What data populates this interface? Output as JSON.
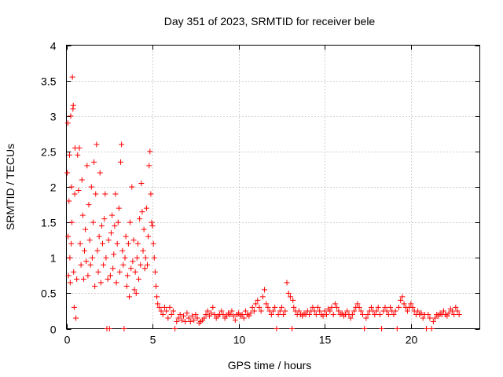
{
  "chart_data": {
    "type": "scatter",
    "title": "Day 351 of 2023, SRMTID for receiver bele",
    "xlabel": "GPS time / hours",
    "ylabel": "SRMTID / TECUs",
    "xlim": [
      0,
      24
    ],
    "ylim": [
      0,
      4
    ],
    "x_ticks": [
      0,
      5,
      10,
      15,
      20
    ],
    "x_tick_labels": [
      "0",
      "5",
      "10",
      "15",
      "20"
    ],
    "y_ticks": [
      0,
      0.5,
      1,
      1.5,
      2,
      2.5,
      3,
      3.5,
      4
    ],
    "y_tick_labels": [
      "0",
      "0.5",
      "1",
      "1.5",
      "2",
      "2.5",
      "3",
      "3.5",
      "4"
    ],
    "grid": true,
    "marker": "plus",
    "series": [
      {
        "name": "SRMTID",
        "color": "#ff0000",
        "points": [
          [
            0.05,
            2.2
          ],
          [
            0.08,
            2.9
          ],
          [
            0.1,
            1.3
          ],
          [
            0.12,
            0.75
          ],
          [
            0.15,
            1.8
          ],
          [
            0.18,
            2.45
          ],
          [
            0.2,
            1.0
          ],
          [
            0.22,
            0.65
          ],
          [
            0.25,
            3.0
          ],
          [
            0.28,
            1.2
          ],
          [
            0.3,
            2.0
          ],
          [
            0.32,
            1.5
          ],
          [
            0.35,
            3.55
          ],
          [
            0.38,
            3.1
          ],
          [
            0.4,
            3.15
          ],
          [
            0.42,
            0.8
          ],
          [
            0.45,
            0.3
          ],
          [
            0.48,
            1.9
          ],
          [
            0.5,
            2.55
          ],
          [
            0.55,
            0.15
          ],
          [
            0.6,
            0.7
          ],
          [
            0.65,
            2.45
          ],
          [
            0.7,
            1.95
          ],
          [
            0.75,
            2.55
          ],
          [
            0.8,
            1.2
          ],
          [
            0.85,
            0.9
          ],
          [
            0.9,
            2.1
          ],
          [
            0.95,
            1.6
          ],
          [
            1.0,
            0.7
          ],
          [
            1.05,
            1.1
          ],
          [
            1.1,
            1.4
          ],
          [
            1.15,
            0.95
          ],
          [
            1.2,
            2.3
          ],
          [
            1.25,
            0.75
          ],
          [
            1.3,
            1.75
          ],
          [
            1.35,
            1.25
          ],
          [
            1.4,
            0.9
          ],
          [
            1.45,
            2.0
          ],
          [
            1.5,
            1.0
          ],
          [
            1.55,
            1.5
          ],
          [
            1.6,
            2.35
          ],
          [
            1.65,
            0.6
          ],
          [
            1.7,
            1.9
          ],
          [
            1.75,
            2.6
          ],
          [
            1.8,
            1.1
          ],
          [
            1.85,
            0.8
          ],
          [
            1.9,
            1.3
          ],
          [
            1.95,
            2.2
          ],
          [
            2.0,
            0.65
          ],
          [
            2.05,
            1.45
          ],
          [
            2.1,
            1.2
          ],
          [
            2.15,
            0.9
          ],
          [
            2.2,
            1.55
          ],
          [
            2.25,
            1.9
          ],
          [
            2.3,
            1.0
          ],
          [
            2.35,
            0.0
          ],
          [
            2.4,
            0.7
          ],
          [
            2.45,
            1.25
          ],
          [
            2.5,
            0.0
          ],
          [
            2.55,
            0.75
          ],
          [
            2.6,
            1.35
          ],
          [
            2.65,
            1.6
          ],
          [
            2.7,
            0.85
          ],
          [
            2.75,
            1.05
          ],
          [
            2.8,
            1.45
          ],
          [
            2.85,
            1.9
          ],
          [
            2.9,
            0.65
          ],
          [
            2.95,
            1.2
          ],
          [
            3.0,
            1.5
          ],
          [
            3.05,
            1.7
          ],
          [
            3.1,
            0.8
          ],
          [
            3.15,
            2.35
          ],
          [
            3.2,
            2.6
          ],
          [
            3.25,
            1.1
          ],
          [
            3.3,
            0.9
          ],
          [
            3.35,
            0.0
          ],
          [
            3.4,
            1.0
          ],
          [
            3.45,
            1.3
          ],
          [
            3.5,
            0.6
          ],
          [
            3.55,
            0.75
          ],
          [
            3.6,
            1.2
          ],
          [
            3.65,
            0.45
          ],
          [
            3.7,
            1.5
          ],
          [
            3.75,
            0.85
          ],
          [
            3.8,
            2.0
          ],
          [
            3.85,
            0.95
          ],
          [
            3.9,
            1.25
          ],
          [
            3.95,
            0.55
          ],
          [
            4.0,
            0.8
          ],
          [
            4.05,
            0.5
          ],
          [
            4.1,
            1.0
          ],
          [
            4.15,
            1.2
          ],
          [
            4.2,
            0.7
          ],
          [
            4.25,
            1.55
          ],
          [
            4.3,
            0.9
          ],
          [
            4.35,
            2.05
          ],
          [
            4.4,
            1.65
          ],
          [
            4.45,
            1.1
          ],
          [
            4.5,
            1.4
          ],
          [
            4.55,
            0.85
          ],
          [
            4.6,
            1.0
          ],
          [
            4.65,
            1.7
          ],
          [
            4.7,
            0.9
          ],
          [
            4.75,
            1.3
          ],
          [
            4.8,
            2.3
          ],
          [
            4.85,
            2.5
          ],
          [
            4.9,
            1.9
          ],
          [
            4.95,
            1.5
          ],
          [
            5.0,
            1.45
          ],
          [
            5.05,
            1.2
          ],
          [
            5.1,
            1.0
          ],
          [
            5.15,
            0.8
          ],
          [
            5.2,
            0.6
          ],
          [
            5.25,
            0.45
          ],
          [
            5.3,
            0.35
          ],
          [
            5.4,
            0.3
          ],
          [
            5.5,
            0.25
          ],
          [
            5.6,
            0.2
          ],
          [
            5.7,
            0.3
          ],
          [
            5.8,
            0.25
          ],
          [
            5.9,
            0.15
          ],
          [
            6.0,
            0.3
          ],
          [
            6.1,
            0.2
          ],
          [
            6.2,
            0.25
          ],
          [
            6.3,
            0.0
          ],
          [
            6.4,
            0.1
          ],
          [
            6.5,
            0.15
          ],
          [
            6.6,
            0.2
          ],
          [
            6.7,
            0.12
          ],
          [
            6.8,
            0.18
          ],
          [
            6.9,
            0.1
          ],
          [
            7.0,
            0.22
          ],
          [
            7.1,
            0.15
          ],
          [
            7.2,
            0.1
          ],
          [
            7.3,
            0.18
          ],
          [
            7.4,
            0.12
          ],
          [
            7.5,
            0.2
          ],
          [
            7.6,
            0.15
          ],
          [
            7.7,
            0.08
          ],
          [
            7.8,
            0.1
          ],
          [
            7.9,
            0.12
          ],
          [
            8.0,
            0.15
          ],
          [
            8.1,
            0.2
          ],
          [
            8.2,
            0.25
          ],
          [
            8.3,
            0.18
          ],
          [
            8.4,
            0.22
          ],
          [
            8.5,
            0.3
          ],
          [
            8.6,
            0.2
          ],
          [
            8.7,
            0.15
          ],
          [
            8.8,
            0.18
          ],
          [
            8.9,
            0.2
          ],
          [
            9.0,
            0.25
          ],
          [
            9.1,
            0.2
          ],
          [
            9.2,
            0.15
          ],
          [
            9.3,
            0.18
          ],
          [
            9.4,
            0.22
          ],
          [
            9.5,
            0.2
          ],
          [
            9.6,
            0.25
          ],
          [
            9.7,
            0.18
          ],
          [
            9.8,
            0.12
          ],
          [
            9.9,
            0.2
          ],
          [
            10.0,
            0.22
          ],
          [
            10.1,
            0.18
          ],
          [
            10.2,
            0.2
          ],
          [
            10.3,
            0.15
          ],
          [
            10.4,
            0.25
          ],
          [
            10.5,
            0.2
          ],
          [
            10.6,
            0.18
          ],
          [
            10.7,
            0.22
          ],
          [
            10.8,
            0.3
          ],
          [
            10.9,
            0.25
          ],
          [
            11.0,
            0.35
          ],
          [
            11.1,
            0.4
          ],
          [
            11.2,
            0.3
          ],
          [
            11.3,
            0.25
          ],
          [
            11.4,
            0.45
          ],
          [
            11.5,
            0.55
          ],
          [
            11.6,
            0.35
          ],
          [
            11.7,
            0.3
          ],
          [
            11.8,
            0.25
          ],
          [
            11.9,
            0.2
          ],
          [
            12.0,
            0.25
          ],
          [
            12.1,
            0.3
          ],
          [
            12.2,
            0.0
          ],
          [
            12.3,
            0.2
          ],
          [
            12.4,
            0.25
          ],
          [
            12.5,
            0.3
          ],
          [
            12.6,
            0.2
          ],
          [
            12.7,
            0.25
          ],
          [
            12.8,
            0.65
          ],
          [
            12.9,
            0.5
          ],
          [
            13.0,
            0.45
          ],
          [
            13.1,
            0.0
          ],
          [
            13.15,
            0.4
          ],
          [
            13.2,
            0.3
          ],
          [
            13.3,
            0.25
          ],
          [
            13.4,
            0.2
          ],
          [
            13.5,
            0.25
          ],
          [
            13.6,
            0.2
          ],
          [
            13.7,
            0.18
          ],
          [
            13.8,
            0.22
          ],
          [
            13.9,
            0.2
          ],
          [
            14.0,
            0.25
          ],
          [
            14.1,
            0.2
          ],
          [
            14.2,
            0.25
          ],
          [
            14.3,
            0.3
          ],
          [
            14.4,
            0.25
          ],
          [
            14.5,
            0.2
          ],
          [
            14.6,
            0.3
          ],
          [
            14.7,
            0.25
          ],
          [
            14.8,
            0.2
          ],
          [
            14.9,
            0.18
          ],
          [
            15.0,
            0.25
          ],
          [
            15.1,
            0.2
          ],
          [
            15.2,
            0.28
          ],
          [
            15.3,
            0.25
          ],
          [
            15.4,
            0.3
          ],
          [
            15.5,
            0.2
          ],
          [
            15.6,
            0.35
          ],
          [
            15.7,
            0.3
          ],
          [
            15.8,
            0.25
          ],
          [
            15.9,
            0.2
          ],
          [
            16.0,
            0.22
          ],
          [
            16.1,
            0.18
          ],
          [
            16.2,
            0.2
          ],
          [
            16.3,
            0.25
          ],
          [
            16.4,
            0.2
          ],
          [
            16.5,
            0.15
          ],
          [
            16.6,
            0.2
          ],
          [
            16.7,
            0.25
          ],
          [
            16.8,
            0.3
          ],
          [
            16.9,
            0.35
          ],
          [
            17.0,
            0.3
          ],
          [
            17.1,
            0.25
          ],
          [
            17.2,
            0.2
          ],
          [
            17.3,
            0.0
          ],
          [
            17.4,
            0.15
          ],
          [
            17.5,
            0.2
          ],
          [
            17.6,
            0.25
          ],
          [
            17.7,
            0.3
          ],
          [
            17.8,
            0.25
          ],
          [
            17.9,
            0.2
          ],
          [
            18.0,
            0.25
          ],
          [
            18.1,
            0.3
          ],
          [
            18.2,
            0.2
          ],
          [
            18.3,
            0.0
          ],
          [
            18.4,
            0.25
          ],
          [
            18.5,
            0.3
          ],
          [
            18.6,
            0.25
          ],
          [
            18.7,
            0.2
          ],
          [
            18.8,
            0.3
          ],
          [
            18.9,
            0.25
          ],
          [
            19.0,
            0.2
          ],
          [
            19.1,
            0.25
          ],
          [
            19.2,
            0.0
          ],
          [
            19.3,
            0.3
          ],
          [
            19.4,
            0.4
          ],
          [
            19.5,
            0.45
          ],
          [
            19.6,
            0.35
          ],
          [
            19.7,
            0.3
          ],
          [
            19.8,
            0.25
          ],
          [
            19.9,
            0.3
          ],
          [
            20.0,
            0.35
          ],
          [
            20.1,
            0.3
          ],
          [
            20.2,
            0.25
          ],
          [
            20.3,
            0.2
          ],
          [
            20.4,
            0.25
          ],
          [
            20.5,
            0.2
          ],
          [
            20.6,
            0.22
          ],
          [
            20.7,
            0.15
          ],
          [
            20.8,
            0.2
          ],
          [
            20.9,
            0.0
          ],
          [
            21.0,
            0.2
          ],
          [
            21.1,
            0.15
          ],
          [
            21.2,
            0.0
          ],
          [
            21.3,
            0.1
          ],
          [
            21.4,
            0.15
          ],
          [
            21.5,
            0.2
          ],
          [
            21.6,
            0.18
          ],
          [
            21.7,
            0.22
          ],
          [
            21.8,
            0.2
          ],
          [
            21.9,
            0.25
          ],
          [
            22.0,
            0.2
          ],
          [
            22.1,
            0.18
          ],
          [
            22.2,
            0.22
          ],
          [
            22.3,
            0.28
          ],
          [
            22.4,
            0.25
          ],
          [
            22.5,
            0.2
          ],
          [
            22.6,
            0.3
          ],
          [
            22.7,
            0.25
          ],
          [
            22.8,
            0.2
          ]
        ]
      }
    ]
  }
}
